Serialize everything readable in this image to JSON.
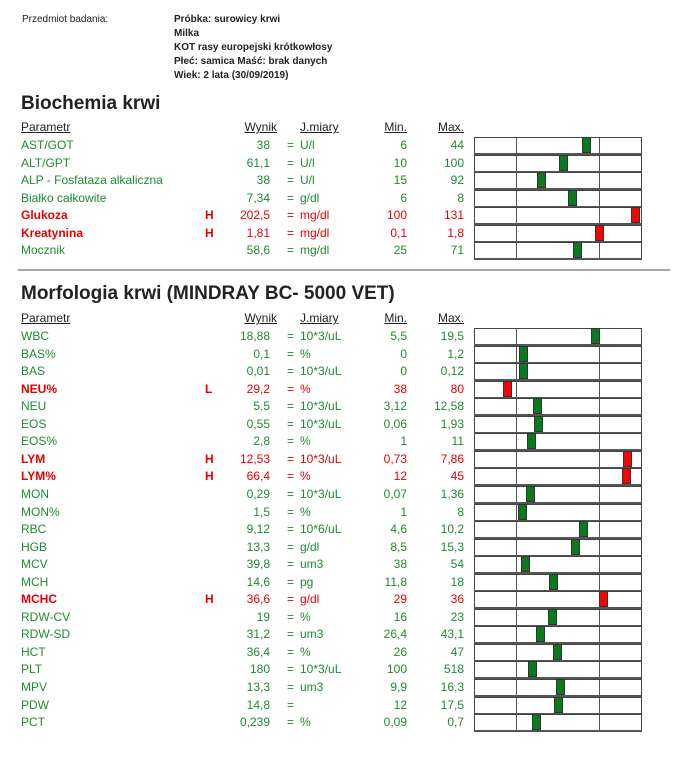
{
  "patient": {
    "label": "Przedmiot badania:",
    "lines": [
      "Próbka: surowicy krwi",
      "Milka",
      "KOT rasy europejski krótkowłosy",
      "Płeć: samica  Maść: brak danych",
      "Wiek: 2 lata (30/09/2019)"
    ]
  },
  "columns": {
    "param": "Parametr",
    "result": "Wynik",
    "unit": "J.miary",
    "min": "Min.",
    "max": "Max."
  },
  "colors": {
    "normal": "#1e8c2e",
    "abnormal": "#e80000",
    "marker_normal": "#0b7a1c",
    "marker_abnormal": "#ff0000"
  },
  "sections": [
    {
      "title": "Biochemia krwi",
      "rows": [
        {
          "name": "AST/GOT",
          "flag": "",
          "value": "38",
          "eq": "=",
          "unit": "U/l",
          "min": "6",
          "max": "44"
        },
        {
          "name": "ALT/GPT",
          "flag": "",
          "value": "61,1",
          "eq": "=",
          "unit": "U/l",
          "min": "10",
          "max": "100"
        },
        {
          "name": "ALP - Fosfataza alkaliczna",
          "flag": "",
          "value": "38",
          "eq": "=",
          "unit": "U/l",
          "min": "15",
          "max": "92"
        },
        {
          "name": "Białko całkowite",
          "flag": "",
          "value": "7,34",
          "eq": "=",
          "unit": "g/dl",
          "min": "6",
          "max": "8"
        },
        {
          "name": "Glukoza",
          "flag": "H",
          "value": "202,5",
          "eq": "=",
          "unit": "mg/dl",
          "min": "100",
          "max": "131"
        },
        {
          "name": "Kreatynina",
          "flag": "H",
          "value": "1,81",
          "eq": "=",
          "unit": "mg/dl",
          "min": "0,1",
          "max": "1,8"
        },
        {
          "name": "Mocznik",
          "flag": "",
          "value": "58,6",
          "eq": "=",
          "unit": "mg/dl",
          "min": "25",
          "max": "71"
        }
      ]
    },
    {
      "title": "Morfologia krwi (MINDRAY BC- 5000 VET)",
      "rows": [
        {
          "name": "WBC",
          "flag": "",
          "value": "18,88",
          "eq": "=",
          "unit": "10*3/uL",
          "min": "5,5",
          "max": "19,5"
        },
        {
          "name": "BAS%",
          "flag": "",
          "value": "0,1",
          "eq": "=",
          "unit": "%",
          "min": "0",
          "max": "1,2"
        },
        {
          "name": "BAS",
          "flag": "",
          "value": "0,01",
          "eq": "=",
          "unit": "10*3/uL",
          "min": "0",
          "max": "0,12"
        },
        {
          "name": "NEU%",
          "flag": "L",
          "value": "29,2",
          "eq": "=",
          "unit": "%",
          "min": "38",
          "max": "80"
        },
        {
          "name": "NEU",
          "flag": "",
          "value": "5,5",
          "eq": "=",
          "unit": "10*3/uL",
          "min": "3,12",
          "max": "12,58"
        },
        {
          "name": "EOS",
          "flag": "",
          "value": "0,55",
          "eq": "=",
          "unit": "10*3/uL",
          "min": "0,06",
          "max": "1,93"
        },
        {
          "name": "EOS%",
          "flag": "",
          "value": "2,8",
          "eq": "=",
          "unit": "%",
          "min": "1",
          "max": "11"
        },
        {
          "name": "LYM",
          "flag": "H",
          "value": "12,53",
          "eq": "=",
          "unit": "10*3/uL",
          "min": "0,73",
          "max": "7,86"
        },
        {
          "name": "LYM%",
          "flag": "H",
          "value": "66,4",
          "eq": "=",
          "unit": "%",
          "min": "12",
          "max": "45"
        },
        {
          "name": "MON",
          "flag": "",
          "value": "0,29",
          "eq": "=",
          "unit": "10*3/uL",
          "min": "0,07",
          "max": "1,36"
        },
        {
          "name": "MON%",
          "flag": "",
          "value": "1,5",
          "eq": "=",
          "unit": "%",
          "min": "1",
          "max": "8"
        },
        {
          "name": "RBC",
          "flag": "",
          "value": "9,12",
          "eq": "=",
          "unit": "10*6/uL",
          "min": "4,6",
          "max": "10,2"
        },
        {
          "name": "HGB",
          "flag": "",
          "value": "13,3",
          "eq": "=",
          "unit": "g/dl",
          "min": "8,5",
          "max": "15,3"
        },
        {
          "name": "MCV",
          "flag": "",
          "value": "39,8",
          "eq": "=",
          "unit": "um3",
          "min": "38",
          "max": "54"
        },
        {
          "name": "MCH",
          "flag": "",
          "value": "14,6",
          "eq": "=",
          "unit": "pg",
          "min": "11,8",
          "max": "18"
        },
        {
          "name": "MCHC",
          "flag": "H",
          "value": "36,6",
          "eq": "=",
          "unit": "g/dl",
          "min": "29",
          "max": "36"
        },
        {
          "name": "RDW-CV",
          "flag": "",
          "value": "19",
          "eq": "=",
          "unit": "%",
          "min": "16",
          "max": "23"
        },
        {
          "name": "RDW-SD",
          "flag": "",
          "value": "31,2",
          "eq": "=",
          "unit": "um3",
          "min": "26,4",
          "max": "43,1"
        },
        {
          "name": "HCT",
          "flag": "",
          "value": "36,4",
          "eq": "=",
          "unit": "%",
          "min": "26",
          "max": "47"
        },
        {
          "name": "PLT",
          "flag": "",
          "value": "180",
          "eq": "=",
          "unit": "10*3/uL",
          "min": "100",
          "max": "518"
        },
        {
          "name": "MPV",
          "flag": "",
          "value": "13,3",
          "eq": "=",
          "unit": "um3",
          "min": "9,9",
          "max": "16,3"
        },
        {
          "name": "PDW",
          "flag": "",
          "value": "14,8",
          "eq": "=",
          "unit": "",
          "min": "12",
          "max": "17,5"
        },
        {
          "name": "PCT",
          "flag": "",
          "value": "0,239",
          "eq": "=",
          "unit": "%",
          "min": "0,09",
          "max": "0,7"
        }
      ]
    }
  ]
}
